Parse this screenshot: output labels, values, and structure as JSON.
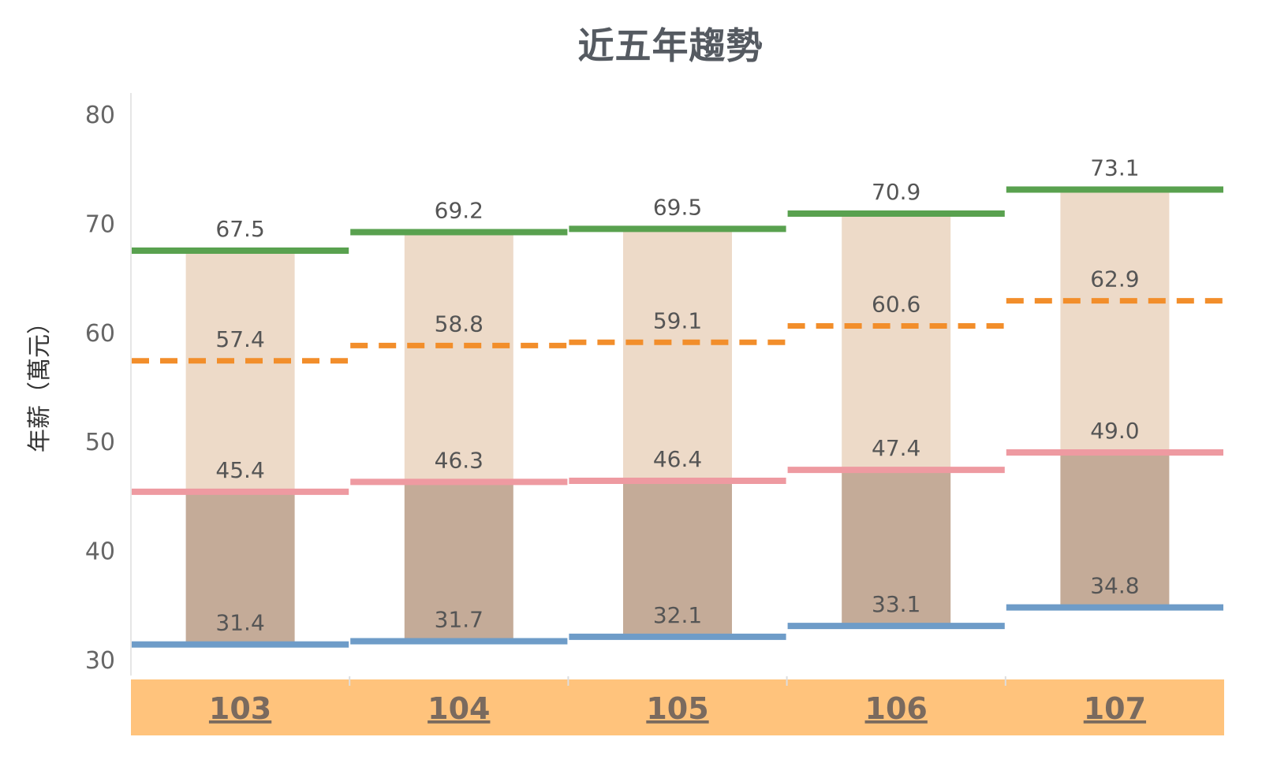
{
  "chart_data": {
    "type": "bar",
    "title": "近五年趨勢",
    "ylabel": "年薪（萬元）",
    "xlabel": "",
    "ylim": [
      30,
      80
    ],
    "yticks": [
      30,
      40,
      50,
      60,
      70,
      80
    ],
    "categories": [
      "103",
      "104",
      "105",
      "106",
      "107"
    ],
    "series": [
      {
        "values": [
          31.4,
          31.7,
          32.1,
          33.1,
          34.8
        ]
      },
      {
        "values": [
          45.4,
          46.3,
          46.4,
          47.4,
          49.0
        ]
      },
      {
        "values": [
          57.4,
          58.8,
          59.1,
          60.6,
          62.9
        ]
      },
      {
        "values": [
          67.5,
          69.2,
          69.5,
          70.9,
          73.1
        ]
      }
    ],
    "value_labels": [
      [
        "31.4",
        "45.4",
        "57.4",
        "67.5"
      ],
      [
        "31.7",
        "46.3",
        "58.8",
        "69.2"
      ],
      [
        "32.1",
        "46.4",
        "59.1",
        "69.5"
      ],
      [
        "33.1",
        "47.4",
        "60.6",
        "70.9"
      ],
      [
        "34.8",
        "49.0",
        "62.9",
        "73.1"
      ]
    ],
    "grid": false,
    "colors": {
      "low_line": "#6e9cc8",
      "q1_line": "#ee9aa1",
      "median_line": "#f28e2b",
      "high_line": "#59a14f",
      "lower_box": "#c4ab98",
      "upper_box": "#eddac8",
      "category_band": "#ffc37c"
    }
  }
}
